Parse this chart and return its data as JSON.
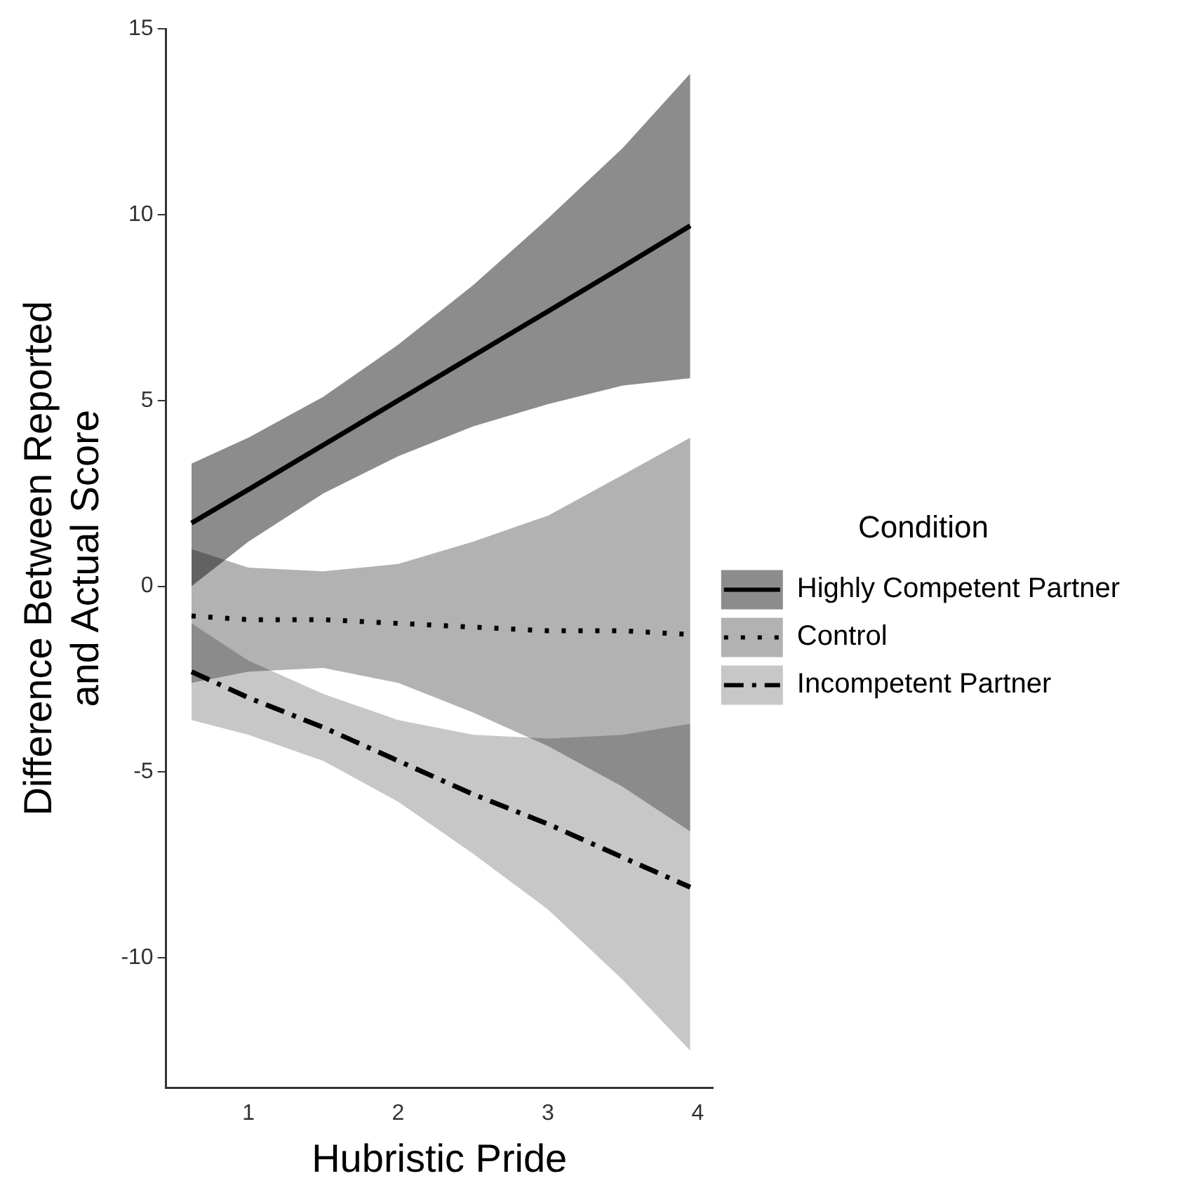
{
  "chart_data": {
    "type": "line",
    "xlabel": "Hubristic Pride",
    "ylabel": "Difference Between Reported\nand Actual Score",
    "legend_title": "Condition",
    "legend": "right",
    "grid": false,
    "marker": "none",
    "xlim": [
      0.45,
      4.1
    ],
    "xticks": [
      1,
      2,
      3,
      4
    ],
    "ylim": [
      -13.5,
      15
    ],
    "yticks": [
      -10,
      -5,
      0,
      5,
      10,
      15
    ],
    "x": [
      0.62,
      1.0,
      1.5,
      2.0,
      2.5,
      3.0,
      3.5,
      3.95
    ],
    "series": [
      {
        "name": "Highly Competent Partner",
        "color": "#000000",
        "line_style": "solid",
        "values": [
          1.7,
          2.6,
          3.8,
          5.0,
          6.2,
          7.4,
          8.6,
          9.7
        ],
        "lower": [
          0.0,
          1.2,
          2.5,
          3.5,
          4.3,
          4.9,
          5.4,
          5.6
        ],
        "upper": [
          3.3,
          4.0,
          5.1,
          6.5,
          8.1,
          9.9,
          11.8,
          13.8
        ]
      },
      {
        "name": "Control",
        "color": "#000000",
        "line_style": "dotted",
        "values": [
          -0.8,
          -0.9,
          -0.9,
          -1.0,
          -1.1,
          -1.2,
          -1.2,
          -1.3
        ],
        "lower": [
          -2.6,
          -2.3,
          -2.2,
          -2.6,
          -3.4,
          -4.3,
          -5.4,
          -6.6
        ],
        "upper": [
          1.0,
          0.5,
          0.4,
          0.6,
          1.2,
          1.9,
          3.0,
          4.0
        ]
      },
      {
        "name": "Incompetent Partner",
        "color": "#000000",
        "line_style": "dashed",
        "values": [
          -2.3,
          -3.0,
          -3.8,
          -4.7,
          -5.6,
          -6.4,
          -7.3,
          -8.1
        ],
        "lower": [
          -3.6,
          -4.0,
          -4.7,
          -5.8,
          -7.2,
          -8.7,
          -10.6,
          -12.5
        ],
        "upper": [
          -1.0,
          -2.0,
          -2.9,
          -3.6,
          -4.0,
          -4.1,
          -4.0,
          -3.7
        ]
      }
    ]
  }
}
